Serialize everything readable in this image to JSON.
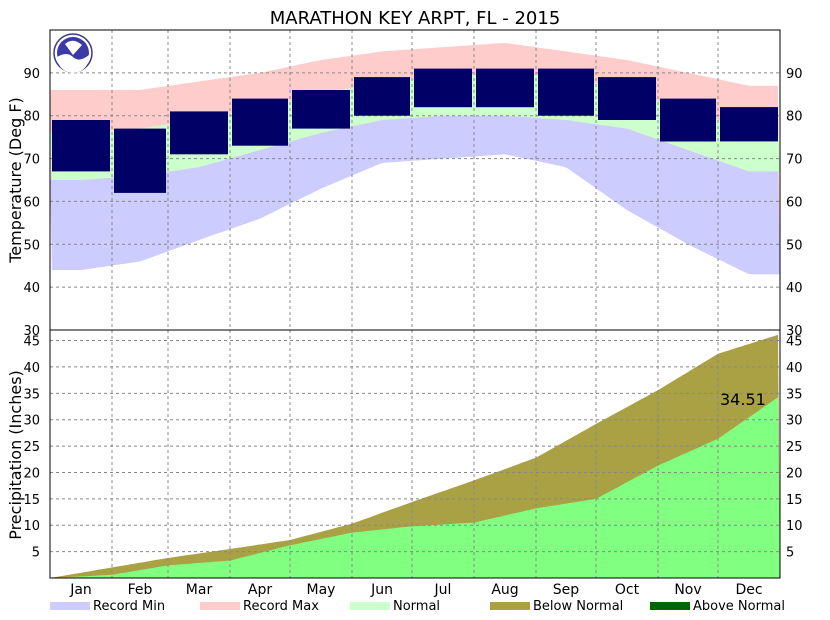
{
  "chart_data": {
    "type": "line",
    "title": "MARATHON KEY ARPT, FL - 2015",
    "months": [
      "Jan",
      "Feb",
      "Mar",
      "Apr",
      "May",
      "Jun",
      "Jul",
      "Aug",
      "Sep",
      "Oct",
      "Nov",
      "Dec"
    ],
    "temperature": {
      "ylabel": "Temperature (Deg F)",
      "ylim": [
        30,
        100
      ],
      "ticks": [
        40,
        50,
        60,
        70,
        80,
        90
      ],
      "extra_ticks": [
        30
      ],
      "normal_high_monthly": [
        76,
        77,
        79,
        82,
        85,
        88,
        89,
        90,
        89,
        86,
        81,
        77
      ],
      "normal_low_monthly": [
        65,
        66,
        68,
        72,
        76,
        79,
        80,
        80,
        79,
        77,
        72,
        67
      ],
      "record_max_monthly": [
        86,
        86,
        88,
        90,
        93,
        95,
        96,
        97,
        95,
        93,
        90,
        87
      ],
      "record_min_monthly": [
        44,
        46,
        51,
        56,
        63,
        69,
        70,
        71,
        68,
        58,
        50,
        43
      ],
      "observed_high_monthly": [
        79,
        77,
        81,
        84,
        86,
        89,
        91,
        91,
        91,
        89,
        84,
        82
      ],
      "observed_low_monthly": [
        67,
        62,
        71,
        73,
        77,
        80,
        82,
        82,
        80,
        79,
        74,
        74
      ]
    },
    "precipitation": {
      "ylabel": "Precipitation (Inches)",
      "ylim": [
        0,
        47
      ],
      "ticks": [
        5,
        10,
        15,
        20,
        25,
        30,
        35,
        40,
        45
      ],
      "normal_cumulative_month_end": [
        2.0,
        3.8,
        5.5,
        7.2,
        10.3,
        14.4,
        18.5,
        22.8,
        29.2,
        35.6,
        42.5,
        46.2
      ],
      "observed_cumulative_month_end": [
        0.6,
        2.4,
        3.3,
        6.2,
        8.6,
        9.8,
        10.5,
        13.2,
        15.0,
        21.3,
        26.4,
        34.51
      ],
      "total_label": "34.51"
    },
    "legend": [
      {
        "label": "Record Min",
        "color": "#ccccff"
      },
      {
        "label": "Record Max",
        "color": "#ffcccc"
      },
      {
        "label": "Normal",
        "color": "#ccffcc"
      },
      {
        "label": "Below Normal",
        "color": "#aaa044"
      },
      {
        "label": "Above Normal",
        "color": "#006600"
      }
    ],
    "colors": {
      "observed": "#000066",
      "precip_observed": "#80ff80",
      "grid": "#888888",
      "frame": "#000000"
    },
    "logo": "noaa-logo"
  }
}
